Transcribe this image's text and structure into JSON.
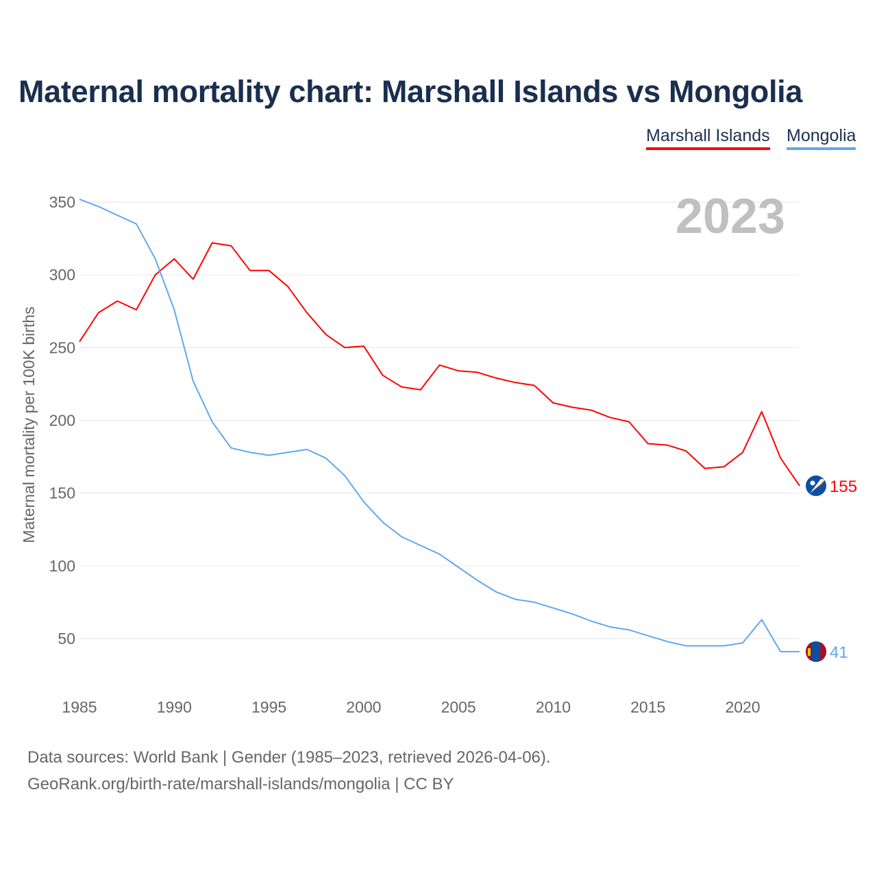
{
  "chart_data": {
    "type": "line",
    "title": "Maternal mortality chart: Marshall Islands vs Mongolia",
    "ylabel": "Maternal mortality per 100K births",
    "xlabel": "",
    "year_label": "2023",
    "xlim": [
      1985,
      2023
    ],
    "ylim": [
      20,
      360
    ],
    "x_ticks": [
      1985,
      1990,
      1995,
      2000,
      2005,
      2010,
      2015,
      2020
    ],
    "y_ticks": [
      50,
      100,
      150,
      200,
      250,
      300,
      350
    ],
    "grid": true,
    "legend_position": "top-right",
    "x": [
      1985,
      1986,
      1987,
      1988,
      1989,
      1990,
      1991,
      1992,
      1993,
      1994,
      1995,
      1996,
      1997,
      1998,
      1999,
      2000,
      2001,
      2002,
      2003,
      2004,
      2005,
      2006,
      2007,
      2008,
      2009,
      2010,
      2011,
      2012,
      2013,
      2014,
      2015,
      2016,
      2017,
      2018,
      2019,
      2020,
      2021,
      2022,
      2023
    ],
    "series": [
      {
        "name": "Marshall Islands",
        "color": "#ff0000",
        "end_label": "155",
        "values": [
          254,
          274,
          282,
          276,
          300,
          311,
          297,
          322,
          320,
          303,
          303,
          292,
          274,
          259,
          250,
          251,
          231,
          223,
          221,
          238,
          234,
          233,
          229,
          226,
          224,
          212,
          209,
          207,
          202,
          199,
          184,
          183,
          179,
          167,
          168,
          178,
          206,
          174,
          155
        ]
      },
      {
        "name": "Mongolia",
        "color": "#5fa8ec",
        "end_label": "41",
        "values": [
          352,
          347,
          341,
          335,
          311,
          276,
          227,
          199,
          181,
          178,
          176,
          178,
          180,
          174,
          162,
          144,
          130,
          120,
          114,
          108,
          99,
          90,
          82,
          77,
          75,
          71,
          67,
          62,
          58,
          56,
          52,
          48,
          45,
          45,
          45,
          47,
          63,
          41,
          41
        ]
      }
    ]
  },
  "footer": {
    "line1": "Data sources: World Bank | Gender (1985–2023, retrieved 2026-04-06).",
    "line2": "GeoRank.org/birth-rate/marshall-islands/mongolia | CC BY"
  }
}
